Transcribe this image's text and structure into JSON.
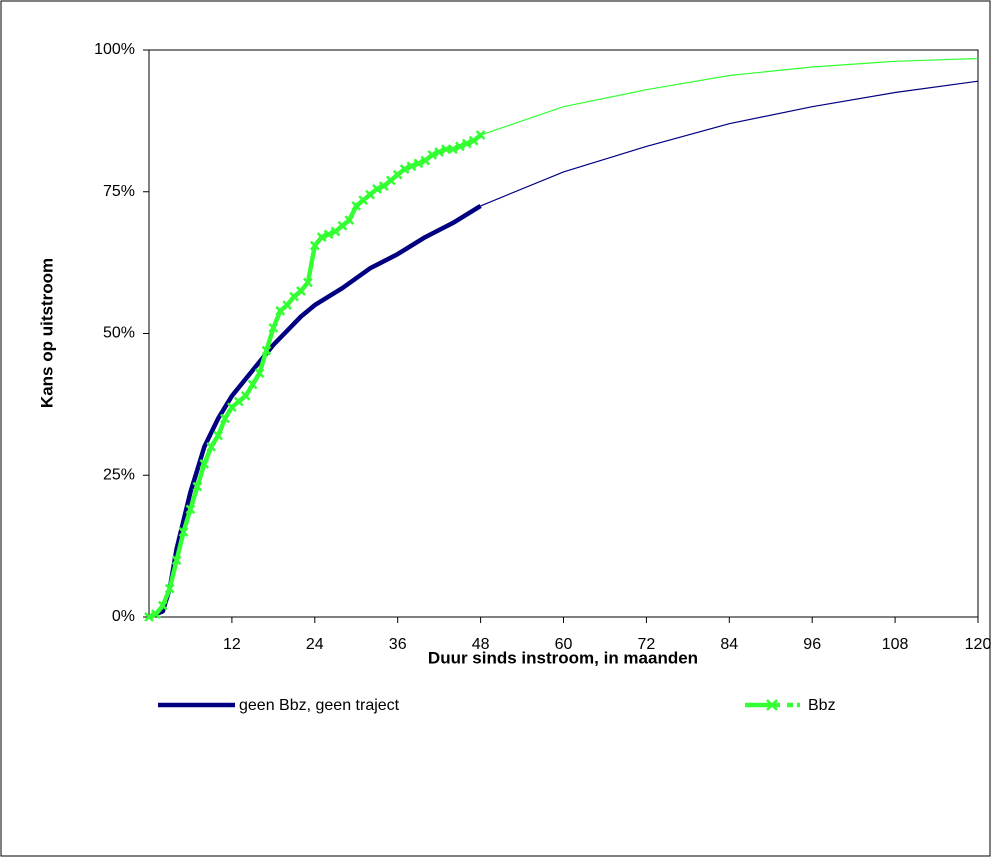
{
  "chart_data": {
    "type": "line",
    "xlabel": "Duur sinds instroom, in maanden",
    "ylabel": "Kans op uitstroom",
    "xlim": [
      0,
      120
    ],
    "xticks": [
      12,
      24,
      36,
      48,
      60,
      72,
      84,
      96,
      108,
      120
    ],
    "ylim": [
      0,
      100
    ],
    "yticks": [
      {
        "value": 0,
        "label": "0%"
      },
      {
        "value": 25,
        "label": "25%"
      },
      {
        "value": 50,
        "label": "50%"
      },
      {
        "value": 75,
        "label": "75%"
      },
      {
        "value": 100,
        "label": "100%"
      }
    ],
    "series": [
      {
        "name": "geen Bbz, geen traject",
        "color": "#000080",
        "marker": "none",
        "x": [
          0,
          2,
          3,
          4,
          5,
          6,
          7,
          8,
          10,
          12,
          14,
          16,
          18,
          20,
          22,
          24,
          28,
          32,
          36,
          40,
          44,
          48
        ],
        "values": [
          0,
          1,
          5,
          12,
          17,
          22,
          26,
          30,
          35,
          39,
          42,
          45,
          48,
          50.5,
          53,
          55,
          58,
          61.5,
          64,
          67,
          69.5,
          72.5
        ],
        "projection_x": [
          48,
          60,
          72,
          84,
          96,
          108,
          120
        ],
        "projection_values": [
          72.5,
          78.5,
          83,
          87,
          90,
          92.5,
          94.5
        ]
      },
      {
        "name": "Bbz",
        "color": "#33ff33",
        "marker": "x",
        "x": [
          0,
          1,
          2,
          3,
          4,
          5,
          6,
          7,
          8,
          9,
          10,
          11,
          12,
          13,
          14,
          15,
          16,
          17,
          18,
          19,
          20,
          21,
          22,
          23,
          24,
          25,
          26,
          27,
          28,
          29,
          30,
          31,
          32,
          33,
          34,
          35,
          36,
          37,
          38,
          39,
          40,
          41,
          42,
          43,
          44,
          45,
          46,
          47,
          48
        ],
        "values": [
          0,
          0.5,
          2,
          5,
          10,
          15,
          19,
          23,
          27,
          30,
          32,
          35,
          37,
          38,
          39,
          41,
          43,
          47,
          51,
          54,
          55,
          56.5,
          57.5,
          59,
          65.5,
          67,
          67.5,
          68,
          69,
          70,
          72.5,
          73.5,
          74.5,
          75.5,
          76,
          77,
          78,
          79,
          79.5,
          80,
          80.5,
          81.5,
          82,
          82.5,
          82.5,
          83,
          83.5,
          84,
          85
        ],
        "projection_x": [
          48,
          60,
          72,
          84,
          96,
          108,
          120
        ],
        "projection_values": [
          85,
          90,
          93,
          95.5,
          97,
          98,
          98.5
        ]
      }
    ]
  }
}
